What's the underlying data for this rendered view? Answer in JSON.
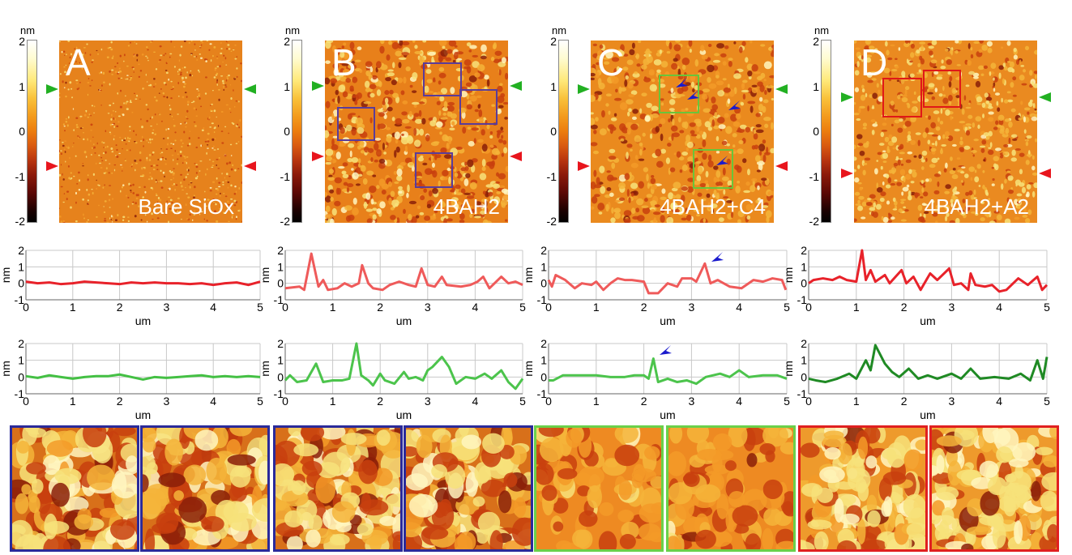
{
  "panels": [
    {
      "letter": "A",
      "sample": "Bare SiOx",
      "unit": "nm",
      "ticks": [
        "2",
        "1",
        "0",
        "-1",
        "-2"
      ]
    },
    {
      "letter": "B",
      "sample": "4BAH2",
      "unit": "nm",
      "ticks": [
        "2",
        "1",
        "0",
        "-1",
        "-2"
      ]
    },
    {
      "letter": "C",
      "sample": "4BAH2+C4",
      "unit": "nm",
      "ticks": [
        "2",
        "1",
        "0",
        "-1",
        "-2"
      ]
    },
    {
      "letter": "D",
      "sample": "4BAH2+A2",
      "unit": "nm",
      "ticks": [
        "2",
        "1",
        "0",
        "-1",
        "-2"
      ]
    }
  ],
  "colors": {
    "red_marker": "#e8151d",
    "green_marker": "#22b022",
    "blue_arrow": "#1a1acc",
    "box_B": "#5a3c9a",
    "box_C": "#6ac43a",
    "box_D": "#e01818",
    "inset_B": "#2a2a9a",
    "inset_C": "#6ad04a",
    "inset_D": "#e02020"
  },
  "chart_data": [
    {
      "type": "line",
      "panel": "A",
      "profile": "red",
      "color": "#e8222a",
      "xlabel": "um",
      "ylabel": "nm",
      "xlim": [
        0,
        5
      ],
      "ylim": [
        -1,
        2
      ],
      "xticks": [
        "0",
        "1",
        "2",
        "3",
        "4",
        "5"
      ],
      "yticks": [
        "2",
        "1",
        "0",
        "-1"
      ],
      "grid": true,
      "x": [
        0,
        0.25,
        0.5,
        0.75,
        1,
        1.25,
        1.5,
        1.75,
        2,
        2.25,
        2.5,
        2.75,
        3,
        3.25,
        3.5,
        3.75,
        4,
        4.25,
        4.5,
        4.75,
        5
      ],
      "y": [
        0.1,
        0,
        0.05,
        -0.05,
        0,
        0.1,
        0.05,
        0,
        -0.05,
        0.05,
        0,
        0.05,
        0,
        0,
        -0.05,
        0,
        -0.1,
        0,
        0.05,
        -0.1,
        0.1
      ]
    },
    {
      "type": "line",
      "panel": "A",
      "profile": "green",
      "color": "#44c044",
      "xlabel": "um",
      "ylabel": "nm",
      "xlim": [
        0,
        5
      ],
      "ylim": [
        -1,
        2
      ],
      "xticks": [
        "0",
        "1",
        "2",
        "3",
        "4",
        "5"
      ],
      "yticks": [
        "2",
        "1",
        "0",
        "-1"
      ],
      "grid": true,
      "x": [
        0,
        0.25,
        0.5,
        0.75,
        1,
        1.25,
        1.5,
        1.75,
        2,
        2.25,
        2.5,
        2.75,
        3,
        3.25,
        3.5,
        3.75,
        4,
        4.25,
        4.5,
        4.75,
        5
      ],
      "y": [
        0.05,
        -0.05,
        0.1,
        0,
        -0.1,
        0,
        0.05,
        0.05,
        0.15,
        0,
        -0.15,
        0,
        -0.05,
        0,
        0.05,
        0.1,
        0,
        0.05,
        0,
        0.05,
        0
      ]
    },
    {
      "type": "line",
      "panel": "B",
      "profile": "red",
      "color": "#ef5a5a",
      "xlabel": "um",
      "ylabel": "nm",
      "xlim": [
        0,
        5
      ],
      "ylim": [
        -1,
        2
      ],
      "xticks": [
        "0",
        "1",
        "2",
        "3",
        "4",
        "5"
      ],
      "yticks": [
        "2",
        "1",
        "0",
        "-1"
      ],
      "grid": true,
      "x": [
        0,
        0.3,
        0.4,
        0.55,
        0.7,
        0.8,
        0.9,
        1.1,
        1.25,
        1.4,
        1.55,
        1.62,
        1.75,
        1.85,
        2.05,
        2.2,
        2.4,
        2.6,
        2.75,
        2.87,
        3,
        3.15,
        3.3,
        3.4,
        3.7,
        3.9,
        4.05,
        4.17,
        4.3,
        4.55,
        4.7,
        4.85,
        5
      ],
      "y": [
        -0.3,
        -0.2,
        -0.4,
        1.8,
        -0.2,
        0.2,
        -0.4,
        -0.3,
        0,
        -0.2,
        0,
        1.1,
        0,
        -0.3,
        -0.4,
        -0.1,
        0.1,
        -0.1,
        -0.2,
        0.9,
        -0.1,
        -0.2,
        0.4,
        -0.1,
        -0.2,
        -0.1,
        0.1,
        0.4,
        -0.3,
        0.4,
        0,
        0.1,
        -0.1
      ]
    },
    {
      "type": "line",
      "panel": "B",
      "profile": "green",
      "color": "#4cc44c",
      "xlabel": "um",
      "ylabel": "nm",
      "xlim": [
        0,
        5
      ],
      "ylim": [
        -1,
        2
      ],
      "xticks": [
        "0",
        "1",
        "2",
        "3",
        "4",
        "5"
      ],
      "yticks": [
        "2",
        "1",
        "0",
        "-1"
      ],
      "grid": true,
      "x": [
        0,
        0.1,
        0.25,
        0.45,
        0.65,
        0.8,
        1,
        1.2,
        1.35,
        1.5,
        1.6,
        1.75,
        1.85,
        2,
        2.1,
        2.3,
        2.5,
        2.6,
        2.75,
        2.9,
        3,
        3.1,
        3.3,
        3.45,
        3.6,
        3.8,
        4,
        4.2,
        4.35,
        4.55,
        4.7,
        4.85,
        5
      ],
      "y": [
        -0.2,
        0.1,
        -0.3,
        -0.2,
        0.8,
        -0.3,
        -0.2,
        -0.2,
        -0.1,
        2,
        0.1,
        -0.2,
        -0.5,
        0.2,
        -0.2,
        -0.4,
        0.3,
        -0.1,
        0,
        -0.2,
        0.4,
        0.6,
        1.2,
        0.6,
        -0.4,
        0,
        -0.1,
        0.2,
        -0.1,
        0.4,
        -0.3,
        -0.7,
        -0.1
      ]
    },
    {
      "type": "line",
      "panel": "C",
      "profile": "red",
      "color": "#ef5a5a",
      "xlabel": "um",
      "ylabel": "nm",
      "xlim": [
        0,
        5
      ],
      "ylim": [
        -1,
        2
      ],
      "xticks": [
        "0",
        "1",
        "2",
        "3",
        "4",
        "5"
      ],
      "yticks": [
        "2",
        "1",
        "0",
        "-1"
      ],
      "grid": true,
      "x": [
        0,
        0.07,
        0.15,
        0.35,
        0.55,
        0.7,
        0.9,
        1,
        1.15,
        1.3,
        1.45,
        1.6,
        1.75,
        2,
        2.1,
        2.3,
        2.5,
        2.7,
        2.8,
        3,
        3.1,
        3.28,
        3.4,
        3.55,
        3.8,
        4.05,
        4.3,
        4.5,
        4.7,
        4.9,
        4.98
      ],
      "y": [
        0.2,
        -0.2,
        0.5,
        0.2,
        -0.3,
        0,
        -0.1,
        0.1,
        -0.4,
        0,
        0.3,
        0.2,
        0.2,
        0.1,
        -0.6,
        -0.6,
        0,
        -0.2,
        0.3,
        0.3,
        0.1,
        1.2,
        0,
        0.2,
        -0.2,
        -0.3,
        0.2,
        0.1,
        0.3,
        0.2,
        -0.4
      ]
    },
    {
      "type": "line",
      "panel": "C",
      "profile": "green",
      "color": "#4cc44c",
      "xlabel": "um",
      "ylabel": "nm",
      "xlim": [
        0,
        5
      ],
      "ylim": [
        -1,
        2
      ],
      "xticks": [
        "0",
        "1",
        "2",
        "3",
        "4",
        "5"
      ],
      "yticks": [
        "2",
        "1",
        "0",
        "-1"
      ],
      "grid": true,
      "x": [
        0,
        0.1,
        0.3,
        0.7,
        1,
        1.3,
        1.6,
        1.8,
        2,
        2.1,
        2.2,
        2.3,
        2.5,
        2.7,
        2.9,
        3.1,
        3.3,
        3.6,
        3.8,
        4,
        4.2,
        4.5,
        4.8,
        5
      ],
      "y": [
        -0.2,
        -0.2,
        0.1,
        0.1,
        0.1,
        0,
        0,
        0.1,
        0.1,
        -0.1,
        1.1,
        -0.3,
        -0.1,
        -0.3,
        -0.2,
        -0.4,
        0,
        0.2,
        0,
        0.4,
        0,
        0.1,
        0.1,
        -0.1
      ]
    },
    {
      "type": "line",
      "panel": "D",
      "profile": "red",
      "color": "#e8222a",
      "xlabel": "um",
      "ylabel": "nm",
      "xlim": [
        0,
        5
      ],
      "ylim": [
        -1,
        2
      ],
      "xticks": [
        "0",
        "1",
        "2",
        "3",
        "4",
        "5"
      ],
      "yticks": [
        "2",
        "1",
        "0",
        "-1"
      ],
      "grid": true,
      "x": [
        0,
        0.1,
        0.3,
        0.5,
        0.65,
        0.8,
        1,
        1.12,
        1.2,
        1.3,
        1.4,
        1.6,
        1.7,
        1.95,
        2.05,
        2.2,
        2.35,
        2.55,
        2.7,
        2.95,
        3.05,
        3.2,
        3.35,
        3.4,
        3.5,
        3.7,
        3.85,
        4,
        4.15,
        4.4,
        4.6,
        4.8,
        4.9,
        5
      ],
      "y": [
        0,
        0.2,
        0.3,
        0.2,
        0.4,
        0.2,
        0.1,
        2,
        0.2,
        0.8,
        0.1,
        0.5,
        0,
        0.8,
        0,
        0.4,
        -0.4,
        0.6,
        0.2,
        0.9,
        -0.1,
        0,
        -0.4,
        0.6,
        -0.1,
        -0.2,
        -0.1,
        -0.5,
        -0.4,
        0.3,
        -0.1,
        0.4,
        -0.4,
        -0.1
      ]
    },
    {
      "type": "line",
      "panel": "D",
      "profile": "green",
      "color": "#1f8a24",
      "xlabel": "um",
      "ylabel": "nm",
      "xlim": [
        0,
        5
      ],
      "ylim": [
        -1,
        2
      ],
      "xticks": [
        "0",
        "1",
        "2",
        "3",
        "4",
        "5"
      ],
      "yticks": [
        "2",
        "1",
        "0",
        "-1"
      ],
      "grid": true,
      "x": [
        0,
        0.15,
        0.35,
        0.6,
        0.85,
        1,
        1.2,
        1.3,
        1.4,
        1.6,
        1.75,
        1.9,
        2.1,
        2.3,
        2.5,
        2.7,
        3,
        3.2,
        3.4,
        3.6,
        3.9,
        4.2,
        4.45,
        4.65,
        4.8,
        4.92,
        5
      ],
      "y": [
        -0.1,
        -0.2,
        -0.3,
        -0.1,
        0.2,
        -0.1,
        1,
        0.4,
        1.9,
        0.8,
        0.3,
        0,
        0.5,
        -0.1,
        0.1,
        -0.1,
        0.2,
        -0.1,
        0.5,
        -0.1,
        0,
        -0.1,
        0.2,
        -0.2,
        1,
        -0.1,
        1.2
      ]
    }
  ]
}
